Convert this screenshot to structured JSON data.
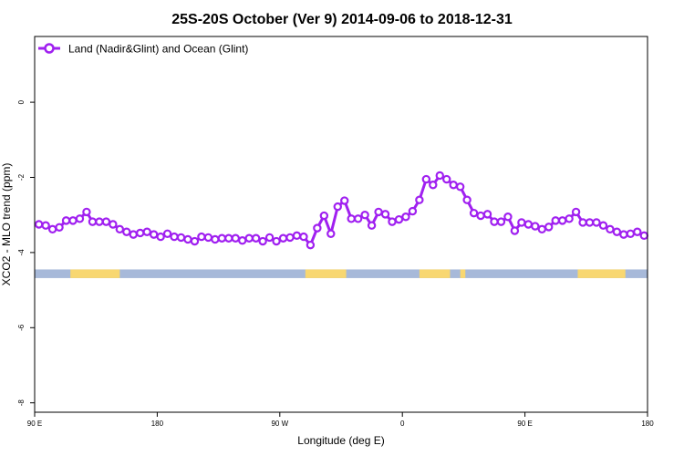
{
  "chart_data": {
    "type": "line",
    "title": "25S-20S October (Ver 9)   2014-09-06 to 2018-12-31",
    "xlabel": "Longitude (deg E)",
    "ylabel": "XCO2 - MLO trend (ppm)",
    "xlim": [
      90,
      450
    ],
    "ylim": [
      -8.25,
      1.75
    ],
    "x_ticks": [
      {
        "value": 90,
        "label": "90 E"
      },
      {
        "value": 162,
        "label": "180"
      },
      {
        "value": 234,
        "label": "90 W"
      },
      {
        "value": 306,
        "label": "0"
      },
      {
        "value": 378,
        "label": "90 E"
      },
      {
        "value": 450,
        "label": "180"
      }
    ],
    "y_ticks": [
      {
        "value": 0,
        "label": "0"
      },
      {
        "value": -2,
        "label": "-2"
      },
      {
        "value": -4,
        "label": "-4"
      },
      {
        "value": -6,
        "label": "-6"
      },
      {
        "value": -8,
        "label": "-8"
      }
    ],
    "legend": {
      "position": "top-left"
    },
    "colors": {
      "series": "#a020f0",
      "ocean": "#a7b9d9",
      "land": "#f8d771"
    },
    "series": [
      {
        "name": "Land (Nadir&Glint) and Ocean (Glint)",
        "x": [
          92.5,
          96.5,
          100.5,
          104.5,
          108.5,
          112.5,
          116.5,
          120.5,
          124,
          128,
          132,
          136,
          140,
          144,
          148,
          152,
          156,
          160,
          164,
          168,
          172,
          176,
          180,
          184,
          188,
          192,
          196,
          200,
          204,
          208,
          212,
          216,
          220,
          224,
          228,
          232,
          236,
          240,
          244,
          248,
          252,
          256,
          260,
          264,
          268,
          272,
          276,
          280,
          284,
          288,
          292,
          296,
          300,
          304,
          308,
          312,
          316,
          320,
          324,
          328,
          332,
          336,
          340,
          344,
          348,
          352,
          356,
          360,
          364,
          368,
          372,
          376,
          380,
          384,
          388,
          392,
          396,
          400,
          404,
          408,
          412,
          416,
          420,
          424,
          428,
          432,
          436,
          440,
          444,
          448
        ],
        "values": [
          -3.25,
          -3.28,
          -3.38,
          -3.33,
          -3.15,
          -3.15,
          -3.1,
          -2.92,
          -3.18,
          -3.18,
          -3.18,
          -3.25,
          -3.38,
          -3.45,
          -3.52,
          -3.48,
          -3.45,
          -3.52,
          -3.58,
          -3.5,
          -3.58,
          -3.6,
          -3.65,
          -3.7,
          -3.58,
          -3.6,
          -3.65,
          -3.62,
          -3.62,
          -3.62,
          -3.68,
          -3.62,
          -3.62,
          -3.7,
          -3.6,
          -3.7,
          -3.62,
          -3.6,
          -3.55,
          -3.58,
          -3.8,
          -3.35,
          -3.02,
          -3.5,
          -2.78,
          -2.62,
          -3.1,
          -3.1,
          -3.0,
          -3.28,
          -2.92,
          -2.98,
          -3.18,
          -3.12,
          -3.05,
          -2.9,
          -2.6,
          -2.05,
          -2.2,
          -1.95,
          -2.05,
          -2.2,
          -2.25,
          -2.6,
          -2.95,
          -3.02,
          -2.98,
          -3.18,
          -3.18,
          -3.05,
          -3.42,
          -3.2,
          -3.25,
          -3.3,
          -3.38,
          -3.32,
          -3.15,
          -3.15,
          -3.1,
          -2.92,
          -3.2,
          -3.2,
          -3.2,
          -3.28,
          -3.38,
          -3.45,
          -3.52,
          -3.5,
          -3.45,
          -3.55
        ]
      }
    ],
    "land_ocean_strip": {
      "y_range": [
        -4.68,
        -4.45
      ],
      "land_x_ranges": [
        [
          111,
          140
        ],
        [
          249,
          273
        ],
        [
          316,
          334
        ],
        [
          340,
          343
        ],
        [
          409,
          437
        ]
      ]
    }
  }
}
